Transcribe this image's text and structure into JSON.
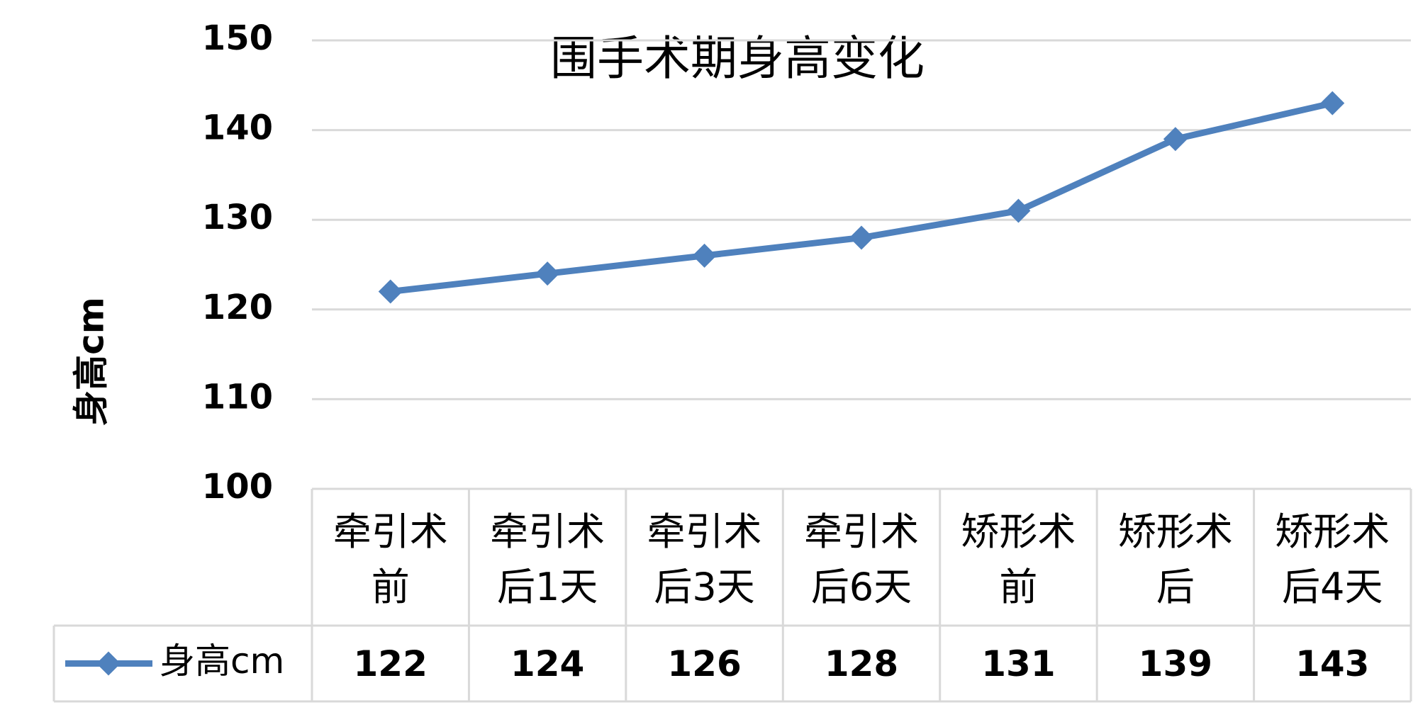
{
  "chart_data": {
    "type": "line",
    "title": "围手术期身高变化",
    "y_label": "身高cm",
    "categories": [
      "牵引术前",
      "牵引术后1天",
      "牵引术后3天",
      "牵引术后6天",
      "矫形术前",
      "矫形术后",
      "矫形术后4天"
    ],
    "series": [
      {
        "name": "身高cm",
        "color": "#4f81bd",
        "values": [
          122,
          124,
          126,
          128,
          131,
          139,
          143
        ]
      }
    ],
    "ylim": [
      100,
      150
    ],
    "yticks": [
      100,
      110,
      120,
      130,
      140,
      150
    ],
    "grid": true,
    "data_table": true
  }
}
